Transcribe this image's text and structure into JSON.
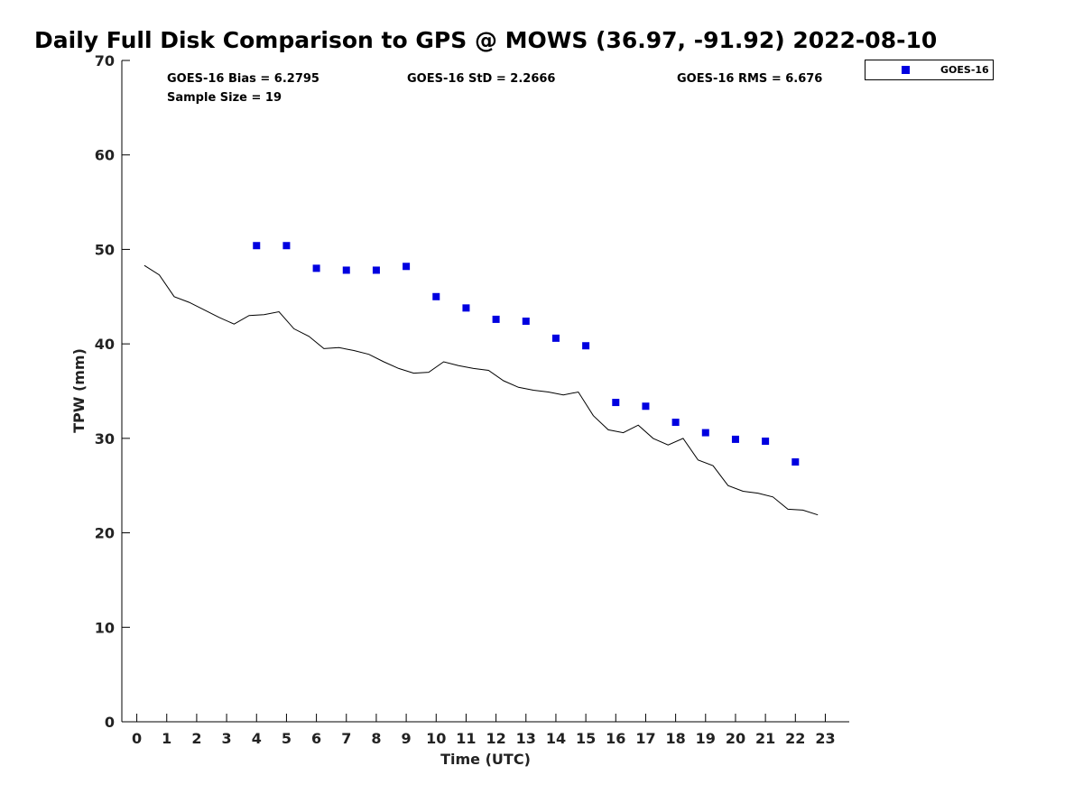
{
  "chart_data": {
    "type": "scatter",
    "title": "Daily Full Disk Comparison to GPS @ MOWS (36.97, -91.92) 2022-08-10",
    "xlabel": "Time (UTC)",
    "ylabel": "TPW (mm)",
    "xlim": [
      -0.5,
      23.8
    ],
    "ylim": [
      0,
      70
    ],
    "x_ticks": [
      "0",
      "1",
      "2",
      "3",
      "4",
      "5",
      "6",
      "7",
      "8",
      "9",
      "10",
      "11",
      "12",
      "13",
      "14",
      "15",
      "16",
      "17",
      "18",
      "19",
      "20",
      "21",
      "22",
      "23"
    ],
    "y_ticks": [
      "0",
      "10",
      "20",
      "30",
      "40",
      "50",
      "60",
      "70"
    ],
    "grid": false,
    "legend": {
      "placement": "top-right",
      "entries": [
        "GOES-16"
      ]
    },
    "stats": {
      "bias": "GOES-16 Bias = 6.2795",
      "std": "GOES-16 StD = 2.2666",
      "rms": "GOES-16 RMS = 6.676",
      "sample_size": "Sample Size = 19"
    },
    "series": [
      {
        "name": "GOES-16",
        "kind": "marker",
        "color": "#0000e0",
        "x": [
          4,
          5,
          6,
          7,
          8,
          9,
          10,
          11,
          12,
          13,
          14,
          15,
          16,
          17,
          18,
          19,
          20,
          21,
          22
        ],
        "y": [
          50.4,
          50.4,
          48.0,
          47.8,
          47.8,
          48.2,
          45.0,
          43.8,
          42.6,
          42.4,
          40.6,
          39.8,
          33.8,
          33.4,
          31.7,
          30.6,
          29.9,
          29.7,
          27.5
        ]
      },
      {
        "kind": "line",
        "color": "#000000",
        "x": [
          0.25,
          0.75,
          1.25,
          1.75,
          2.25,
          2.75,
          3.25,
          3.75,
          4.25,
          4.75,
          5.25,
          5.75,
          6.25,
          6.75,
          7.25,
          7.75,
          8.25,
          8.75,
          9.25,
          9.75,
          10.25,
          10.75,
          11.25,
          11.75,
          12.25,
          12.75,
          13.25,
          13.75,
          14.25,
          14.75,
          15.25,
          15.75,
          16.25,
          16.75,
          17.25,
          17.75,
          18.25,
          18.75,
          19.25,
          19.75,
          20.25,
          20.75,
          21.25,
          21.75,
          22.25,
          22.75
        ],
        "y": [
          48.3,
          47.3,
          45.0,
          44.4,
          43.6,
          42.8,
          42.1,
          43.0,
          43.1,
          43.4,
          41.6,
          40.8,
          39.5,
          39.6,
          39.3,
          38.9,
          38.1,
          37.4,
          36.9,
          37.0,
          38.1,
          37.7,
          37.4,
          37.2,
          36.1,
          35.4,
          35.1,
          34.9,
          34.6,
          34.9,
          32.4,
          30.9,
          30.6,
          31.4,
          30.0,
          29.3,
          30.0,
          27.7,
          27.1,
          25.0,
          24.4,
          24.2,
          23.8,
          22.5,
          22.4,
          21.9
        ]
      }
    ]
  }
}
